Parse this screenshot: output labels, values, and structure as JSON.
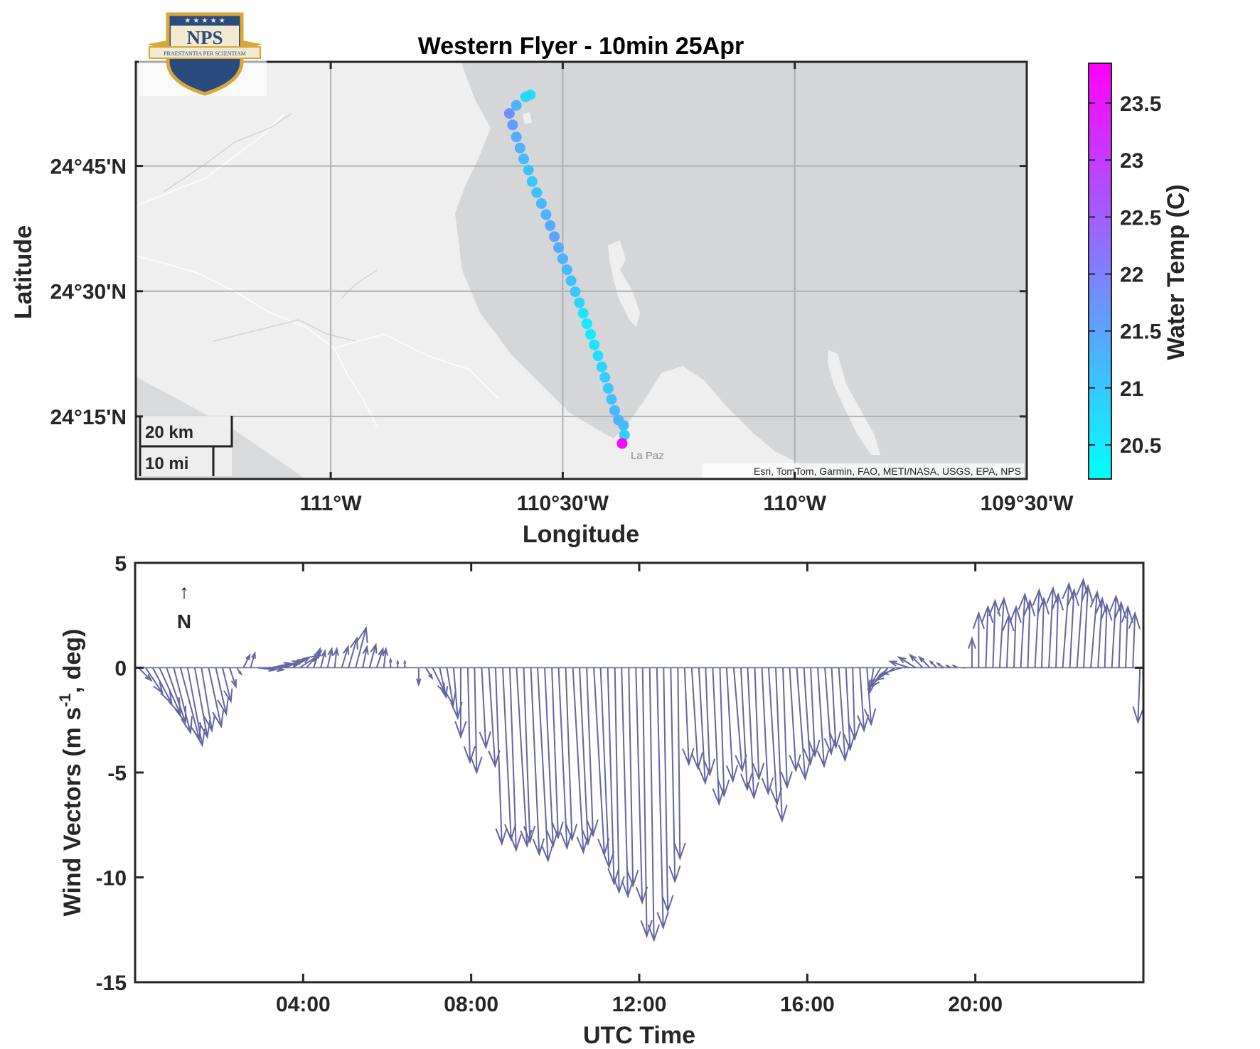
{
  "logo": {
    "text": "NPS",
    "motto": "PRAESTANTIA PER SCIENTIAM"
  },
  "colors": {
    "water": "#d4d6d8",
    "land": "#efefef",
    "grid": "#a8a8a8",
    "axis": "#262626",
    "wind_arrow": "#6466a0",
    "cmap_low": "#00ffff",
    "cmap_high": "#ff00ff"
  },
  "chart_data": [
    {
      "type": "scatter",
      "title": "Western Flyer - 10min 25Apr",
      "xlabel": "Longitude",
      "ylabel": "Latitude",
      "xlim": [
        -111.42,
        -109.5
      ],
      "ylim": [
        24.125,
        24.958
      ],
      "xticks": [
        {
          "value": -111.0,
          "label": "111°W"
        },
        {
          "value": -110.5,
          "label": "110°30'W"
        },
        {
          "value": -110.0,
          "label": "110°W"
        },
        {
          "value": -109.5,
          "label": "109°30'W"
        }
      ],
      "yticks": [
        {
          "value": 24.25,
          "label": "24°15'N"
        },
        {
          "value": 24.5,
          "label": "24°30'N"
        },
        {
          "value": 24.75,
          "label": "24°45'N"
        }
      ],
      "grid": true,
      "scalebar": {
        "km_label": "20 km",
        "mi_label": "10 mi"
      },
      "place_label": "La Paz",
      "attribution": "Esri, TomTom, Garmin, FAO, METI/NASA, USGS, EPA, NPS",
      "colorbar": {
        "label": "Water Temp (C)",
        "range": [
          20.2,
          23.85
        ],
        "ticks": [
          20.5,
          21,
          21.5,
          22,
          22.5,
          23,
          23.5
        ]
      },
      "track": [
        {
          "lon": -110.57,
          "lat": 24.892,
          "temp": 20.7
        },
        {
          "lon": -110.58,
          "lat": 24.888,
          "temp": 20.8
        },
        {
          "lon": -110.6,
          "lat": 24.871,
          "temp": 21.3
        },
        {
          "lon": -110.615,
          "lat": 24.855,
          "temp": 21.8
        },
        {
          "lon": -110.608,
          "lat": 24.832,
          "temp": 21.6
        },
        {
          "lon": -110.6,
          "lat": 24.808,
          "temp": 21.4
        },
        {
          "lon": -110.592,
          "lat": 24.786,
          "temp": 21.3
        },
        {
          "lon": -110.584,
          "lat": 24.764,
          "temp": 21.2
        },
        {
          "lon": -110.574,
          "lat": 24.742,
          "temp": 21.1
        },
        {
          "lon": -110.566,
          "lat": 24.719,
          "temp": 21.0
        },
        {
          "lon": -110.556,
          "lat": 24.697,
          "temp": 21.1
        },
        {
          "lon": -110.546,
          "lat": 24.675,
          "temp": 21.2
        },
        {
          "lon": -110.536,
          "lat": 24.653,
          "temp": 21.3
        },
        {
          "lon": -110.527,
          "lat": 24.631,
          "temp": 21.4
        },
        {
          "lon": -110.518,
          "lat": 24.609,
          "temp": 21.5
        },
        {
          "lon": -110.509,
          "lat": 24.587,
          "temp": 21.4
        },
        {
          "lon": -110.5,
          "lat": 24.565,
          "temp": 21.3
        },
        {
          "lon": -110.491,
          "lat": 24.543,
          "temp": 21.2
        },
        {
          "lon": -110.482,
          "lat": 24.521,
          "temp": 21.1
        },
        {
          "lon": -110.473,
          "lat": 24.499,
          "temp": 21.0
        },
        {
          "lon": -110.464,
          "lat": 24.477,
          "temp": 20.8
        },
        {
          "lon": -110.456,
          "lat": 24.456,
          "temp": 20.6
        },
        {
          "lon": -110.448,
          "lat": 24.435,
          "temp": 20.5
        },
        {
          "lon": -110.44,
          "lat": 24.414,
          "temp": 20.5
        },
        {
          "lon": -110.432,
          "lat": 24.393,
          "temp": 20.6
        },
        {
          "lon": -110.424,
          "lat": 24.371,
          "temp": 20.7
        },
        {
          "lon": -110.416,
          "lat": 24.349,
          "temp": 20.8
        },
        {
          "lon": -110.409,
          "lat": 24.328,
          "temp": 20.9
        },
        {
          "lon": -110.402,
          "lat": 24.306,
          "temp": 21.0
        },
        {
          "lon": -110.395,
          "lat": 24.284,
          "temp": 21.1
        },
        {
          "lon": -110.388,
          "lat": 24.262,
          "temp": 21.2
        },
        {
          "lon": -110.38,
          "lat": 24.243,
          "temp": 21.3
        },
        {
          "lon": -110.369,
          "lat": 24.232,
          "temp": 21.2
        },
        {
          "lon": -110.367,
          "lat": 24.213,
          "temp": 20.9
        },
        {
          "lon": -110.372,
          "lat": 24.196,
          "temp": 23.8
        }
      ]
    },
    {
      "type": "quiver",
      "xlabel": "UTC Time",
      "ylabel": "Wind Vectors (m s-1, deg)",
      "xlim": [
        0.0,
        24.0
      ],
      "ylim": [
        -15,
        5
      ],
      "xticks": [
        {
          "value": 4,
          "label": "04:00"
        },
        {
          "value": 8,
          "label": "08:00"
        },
        {
          "value": 12,
          "label": "12:00"
        },
        {
          "value": 16,
          "label": "16:00"
        },
        {
          "value": 20,
          "label": "20:00"
        }
      ],
      "yticks": [
        {
          "value": 5,
          "label": "5"
        },
        {
          "value": 0,
          "label": "0"
        },
        {
          "value": -5,
          "label": "-5"
        },
        {
          "value": -10,
          "label": "-10"
        },
        {
          "value": -15,
          "label": "-15"
        }
      ],
      "north_arrow": {
        "glyph": "↑",
        "label": "N"
      },
      "vectors": [
        {
          "t": 0.08,
          "u": 0.6,
          "v": -0.6
        },
        {
          "t": 0.25,
          "u": 0.8,
          "v": -1.2
        },
        {
          "t": 0.42,
          "u": 0.9,
          "v": -1.7
        },
        {
          "t": 0.58,
          "u": 1.0,
          "v": -2.2
        },
        {
          "t": 0.75,
          "u": 0.9,
          "v": -2.6
        },
        {
          "t": 0.92,
          "u": 0.8,
          "v": -3.1
        },
        {
          "t": 1.08,
          "u": 0.9,
          "v": -3.4
        },
        {
          "t": 1.25,
          "u": 0.7,
          "v": -3.7
        },
        {
          "t": 1.42,
          "u": 0.6,
          "v": -3.3
        },
        {
          "t": 1.58,
          "u": 0.5,
          "v": -3.0
        },
        {
          "t": 1.75,
          "u": 0.6,
          "v": -2.8
        },
        {
          "t": 1.92,
          "u": 0.5,
          "v": -2.2
        },
        {
          "t": 2.08,
          "u": 0.4,
          "v": -1.6
        },
        {
          "t": 2.25,
          "u": 0.3,
          "v": -0.9
        },
        {
          "t": 2.42,
          "u": 0.2,
          "v": -0.3
        },
        {
          "t": 2.58,
          "u": 0.3,
          "v": 0.6
        },
        {
          "t": 2.75,
          "u": 0.2,
          "v": 0.7
        },
        {
          "t": 2.92,
          "u": 0.8,
          "v": -0.1
        },
        {
          "t": 3.08,
          "u": 0.9,
          "v": -0.1
        },
        {
          "t": 3.25,
          "u": 0.9,
          "v": 0.2
        },
        {
          "t": 3.42,
          "u": 1.0,
          "v": 0.3
        },
        {
          "t": 3.58,
          "u": 0.9,
          "v": 0.4
        },
        {
          "t": 3.75,
          "u": 0.8,
          "v": 0.5
        },
        {
          "t": 3.92,
          "u": 0.9,
          "v": 0.6
        },
        {
          "t": 4.08,
          "u": 0.7,
          "v": 0.8
        },
        {
          "t": 4.25,
          "u": 0.3,
          "v": 0.9
        },
        {
          "t": 4.42,
          "u": 0.2,
          "v": 0.8
        },
        {
          "t": 4.58,
          "u": 0.2,
          "v": 0.9
        },
        {
          "t": 4.75,
          "u": 0.1,
          "v": 0.9
        },
        {
          "t": 4.92,
          "u": 0.3,
          "v": 1.0
        },
        {
          "t": 5.08,
          "u": 0.4,
          "v": 1.4
        },
        {
          "t": 5.25,
          "u": 0.5,
          "v": 1.9
        },
        {
          "t": 5.42,
          "u": 0.2,
          "v": 1.0
        },
        {
          "t": 5.58,
          "u": 0.3,
          "v": 1.1
        },
        {
          "t": 5.75,
          "u": 0.3,
          "v": 0.9
        },
        {
          "t": 5.92,
          "u": 0.1,
          "v": 0.9
        },
        {
          "t": 6.08,
          "u": 0.0,
          "v": 0.4
        },
        {
          "t": 6.25,
          "u": 0.0,
          "v": 0.3
        },
        {
          "t": 6.42,
          "u": 0.0,
          "v": 0.3
        },
        {
          "t": 6.58,
          "u": 0.0,
          "v": 0.0
        },
        {
          "t": 6.75,
          "u": 0.0,
          "v": -0.8
        },
        {
          "t": 6.92,
          "u": 0.3,
          "v": -0.5
        },
        {
          "t": 7.08,
          "u": 0.6,
          "v": -1.2
        },
        {
          "t": 7.25,
          "u": 0.3,
          "v": -1.4
        },
        {
          "t": 7.42,
          "u": 0.3,
          "v": -1.8
        },
        {
          "t": 7.58,
          "u": 0.2,
          "v": -2.4
        },
        {
          "t": 7.75,
          "u": 0.0,
          "v": -3.3
        },
        {
          "t": 7.92,
          "u": 0.1,
          "v": -4.5
        },
        {
          "t": 8.08,
          "u": 0.1,
          "v": -5.0
        },
        {
          "t": 8.25,
          "u": 0.2,
          "v": -3.8
        },
        {
          "t": 8.42,
          "u": 0.3,
          "v": -4.7
        },
        {
          "t": 8.58,
          "u": 0.3,
          "v": -8.4
        },
        {
          "t": 8.75,
          "u": 0.4,
          "v": -8.2
        },
        {
          "t": 8.92,
          "u": 0.3,
          "v": -8.7
        },
        {
          "t": 9.08,
          "u": 0.5,
          "v": -8.5
        },
        {
          "t": 9.25,
          "u": 0.3,
          "v": -8.3
        },
        {
          "t": 9.42,
          "u": 0.4,
          "v": -8.9
        },
        {
          "t": 9.58,
          "u": 0.5,
          "v": -9.2
        },
        {
          "t": 9.75,
          "u": 0.4,
          "v": -8.5
        },
        {
          "t": 9.92,
          "u": 0.3,
          "v": -8.1
        },
        {
          "t": 10.08,
          "u": 0.4,
          "v": -8.6
        },
        {
          "t": 10.25,
          "u": 0.3,
          "v": -8.2
        },
        {
          "t": 10.42,
          "u": 0.5,
          "v": -8.8
        },
        {
          "t": 10.58,
          "u": 0.4,
          "v": -8.4
        },
        {
          "t": 10.75,
          "u": 0.3,
          "v": -8.0
        },
        {
          "t": 10.92,
          "u": 0.5,
          "v": -8.9
        },
        {
          "t": 11.08,
          "u": 0.4,
          "v": -9.5
        },
        {
          "t": 11.25,
          "u": 0.3,
          "v": -10.3
        },
        {
          "t": 11.42,
          "u": 0.2,
          "v": -10.7
        },
        {
          "t": 11.58,
          "u": 0.3,
          "v": -10.9
        },
        {
          "t": 11.75,
          "u": 0.2,
          "v": -10.4
        },
        {
          "t": 11.92,
          "u": 0.3,
          "v": -11.2
        },
        {
          "t": 12.08,
          "u": 0.2,
          "v": -12.8
        },
        {
          "t": 12.25,
          "u": 0.2,
          "v": -13.0
        },
        {
          "t": 12.42,
          "u": 0.3,
          "v": -12.4
        },
        {
          "t": 12.58,
          "u": 0.2,
          "v": -11.6
        },
        {
          "t": 12.75,
          "u": 0.2,
          "v": -10.2
        },
        {
          "t": 12.92,
          "u": 0.1,
          "v": -9.1
        },
        {
          "t": 13.08,
          "u": 0.2,
          "v": -4.6
        },
        {
          "t": 13.25,
          "u": 0.3,
          "v": -4.8
        },
        {
          "t": 13.42,
          "u": 0.3,
          "v": -5.5
        },
        {
          "t": 13.58,
          "u": 0.2,
          "v": -5.1
        },
        {
          "t": 13.75,
          "u": 0.3,
          "v": -6.5
        },
        {
          "t": 13.92,
          "u": 0.2,
          "v": -6.1
        },
        {
          "t": 14.08,
          "u": 0.3,
          "v": -5.4
        },
        {
          "t": 14.25,
          "u": 0.4,
          "v": -4.9
        },
        {
          "t": 14.42,
          "u": 0.3,
          "v": -5.8
        },
        {
          "t": 14.58,
          "u": 0.3,
          "v": -6.2
        },
        {
          "t": 14.75,
          "u": 0.2,
          "v": -5.3
        },
        {
          "t": 14.92,
          "u": 0.3,
          "v": -6.0
        },
        {
          "t": 15.08,
          "u": 0.4,
          "v": -6.5
        },
        {
          "t": 15.25,
          "u": 0.3,
          "v": -7.3
        },
        {
          "t": 15.42,
          "u": 0.2,
          "v": -5.7
        },
        {
          "t": 15.58,
          "u": 0.3,
          "v": -4.9
        },
        {
          "t": 15.75,
          "u": 0.4,
          "v": -5.3
        },
        {
          "t": 15.92,
          "u": 0.3,
          "v": -4.6
        },
        {
          "t": 16.08,
          "u": 0.2,
          "v": -4.2
        },
        {
          "t": 16.25,
          "u": 0.3,
          "v": -4.7
        },
        {
          "t": 16.42,
          "u": 0.3,
          "v": -4.1
        },
        {
          "t": 16.58,
          "u": 0.2,
          "v": -3.8
        },
        {
          "t": 16.75,
          "u": 0.3,
          "v": -4.4
        },
        {
          "t": 16.92,
          "u": 0.2,
          "v": -3.9
        },
        {
          "t": 17.08,
          "u": 0.1,
          "v": -3.4
        },
        {
          "t": 17.25,
          "u": 0.2,
          "v": -3.0
        },
        {
          "t": 17.42,
          "u": 0.2,
          "v": -2.7
        },
        {
          "t": 17.58,
          "u": -0.2,
          "v": -1.2
        },
        {
          "t": 17.75,
          "u": -0.6,
          "v": -1.0
        },
        {
          "t": 17.92,
          "u": -0.8,
          "v": -0.9
        },
        {
          "t": 18.08,
          "u": -0.9,
          "v": -0.6
        },
        {
          "t": 18.25,
          "u": -1.0,
          "v": -0.3
        },
        {
          "t": 18.42,
          "u": -0.9,
          "v": 0.3
        },
        {
          "t": 18.58,
          "u": -0.8,
          "v": 0.5
        },
        {
          "t": 18.75,
          "u": -0.6,
          "v": 0.6
        },
        {
          "t": 18.92,
          "u": -0.5,
          "v": 0.5
        },
        {
          "t": 19.08,
          "u": -0.3,
          "v": 0.3
        },
        {
          "t": 19.25,
          "u": -0.3,
          "v": 0.2
        },
        {
          "t": 19.42,
          "u": -0.2,
          "v": 0.1
        },
        {
          "t": 19.58,
          "u": -0.2,
          "v": 0.1
        },
        {
          "t": 19.75,
          "u": -0.1,
          "v": 0.0
        },
        {
          "t": 19.92,
          "u": 0.0,
          "v": 1.4
        },
        {
          "t": 20.08,
          "u": 0.0,
          "v": 2.6
        },
        {
          "t": 20.25,
          "u": 0.1,
          "v": 2.9
        },
        {
          "t": 20.42,
          "u": 0.1,
          "v": 3.2
        },
        {
          "t": 20.58,
          "u": 0.2,
          "v": 3.3
        },
        {
          "t": 20.75,
          "u": 0.1,
          "v": 2.5
        },
        {
          "t": 20.92,
          "u": 0.1,
          "v": 2.9
        },
        {
          "t": 21.08,
          "u": 0.2,
          "v": 3.5
        },
        {
          "t": 21.25,
          "u": 0.1,
          "v": 3.2
        },
        {
          "t": 21.42,
          "u": 0.2,
          "v": 3.7
        },
        {
          "t": 21.58,
          "u": 0.1,
          "v": 3.3
        },
        {
          "t": 21.75,
          "u": 0.2,
          "v": 3.8
        },
        {
          "t": 21.92,
          "u": 0.1,
          "v": 3.5
        },
        {
          "t": 22.08,
          "u": 0.3,
          "v": 4.0
        },
        {
          "t": 22.25,
          "u": 0.2,
          "v": 3.7
        },
        {
          "t": 22.42,
          "u": 0.3,
          "v": 4.2
        },
        {
          "t": 22.58,
          "u": 0.2,
          "v": 3.9
        },
        {
          "t": 22.75,
          "u": 0.3,
          "v": 3.6
        },
        {
          "t": 22.92,
          "u": 0.2,
          "v": 3.3
        },
        {
          "t": 23.08,
          "u": 0.1,
          "v": 3.0
        },
        {
          "t": 23.25,
          "u": 0.2,
          "v": 3.4
        },
        {
          "t": 23.42,
          "u": 0.1,
          "v": 3.1
        },
        {
          "t": 23.58,
          "u": 0.1,
          "v": 2.9
        },
        {
          "t": 23.75,
          "u": 0.1,
          "v": 2.6
        },
        {
          "t": 23.92,
          "u": -0.1,
          "v": -2.6
        }
      ]
    }
  ]
}
